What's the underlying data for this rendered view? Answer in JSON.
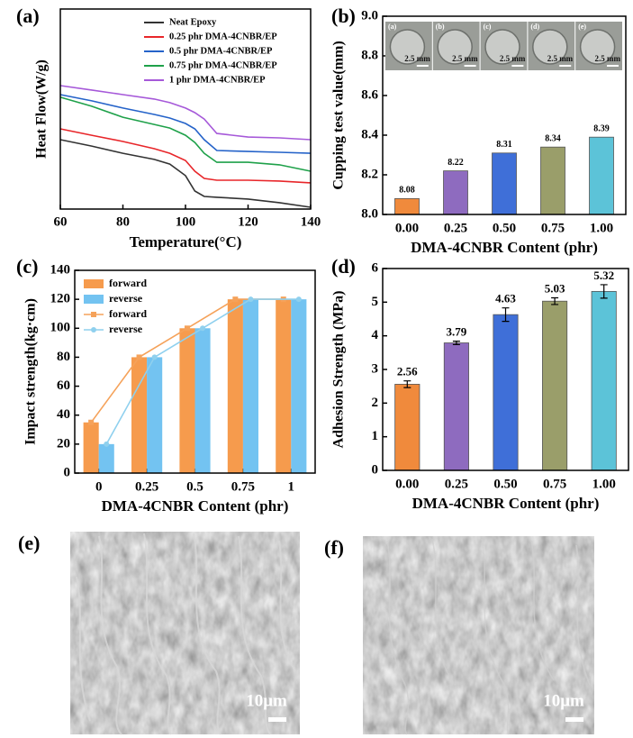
{
  "chart_data": [
    {
      "type": "line",
      "label": "(a)",
      "x_label": "Temperature(°C)",
      "y_label": "Heat Flow(W/g)",
      "x": [
        60,
        70,
        80,
        90,
        95,
        100,
        103,
        106,
        110,
        120,
        130,
        140
      ],
      "xlim": [
        60,
        140
      ],
      "xticks": [
        60,
        80,
        100,
        120,
        140
      ],
      "ylim": [
        0,
        10
      ],
      "legend": "upper right",
      "series": [
        {
          "name": "Neat Epoxy",
          "color": "#333333",
          "values": [
            3.47,
            3.15,
            2.79,
            2.48,
            2.25,
            1.67,
            0.9,
            0.63,
            0.59,
            0.5,
            0.32,
            0.09
          ]
        },
        {
          "name": "0.25 phr DMA-4CNBR/EP",
          "color": "#e8262a",
          "values": [
            4.01,
            3.69,
            3.38,
            3.02,
            2.79,
            2.43,
            1.89,
            1.53,
            1.44,
            1.44,
            1.4,
            1.31
          ]
        },
        {
          "name": "0.5 phr DMA-4CNBR/EP",
          "color": "#2563c9",
          "values": [
            5.72,
            5.41,
            5.05,
            4.73,
            4.55,
            4.28,
            4.01,
            3.47,
            2.93,
            2.88,
            2.84,
            2.79
          ]
        },
        {
          "name": "0.75 phr DMA-4CNBR/EP",
          "color": "#1fa14a",
          "values": [
            5.59,
            5.14,
            4.59,
            4.23,
            4.05,
            3.69,
            3.33,
            2.79,
            2.34,
            2.34,
            2.21,
            1.89
          ]
        },
        {
          "name": "1 phr DMA-4CNBR/EP",
          "color": "#a659d9",
          "values": [
            6.17,
            5.95,
            5.72,
            5.5,
            5.32,
            5.05,
            4.82,
            4.5,
            3.78,
            3.6,
            3.56,
            3.47
          ]
        }
      ]
    },
    {
      "type": "bar",
      "label": "(b)",
      "x_label": "DMA-4CNBR Content (phr)",
      "y_label": "Cupping test value(mm)",
      "categories": [
        "0.00",
        "0.25",
        "0.50",
        "0.75",
        "1.00"
      ],
      "values": [
        8.08,
        8.22,
        8.31,
        8.34,
        8.39
      ],
      "colors": [
        "#f08a3c",
        "#8e6bbf",
        "#3f6fd8",
        "#9a9e6a",
        "#5cc3d8"
      ],
      "ylim": [
        8.0,
        9.0
      ],
      "yticks": [
        {
          "value": 8,
          "label": "8.0"
        },
        8.2,
        8.4,
        8.6,
        8.8,
        {
          "value": 9,
          "label": "9.0"
        }
      ],
      "insets": [
        {
          "label": "(a)",
          "scale": "2.5 mm"
        },
        {
          "label": "(b)",
          "scale": "2.5 mm"
        },
        {
          "label": "(c)",
          "scale": "2.5 mm"
        },
        {
          "label": "(d)",
          "scale": "2.5 mm"
        },
        {
          "label": "(e)",
          "scale": "2.5 mm"
        }
      ]
    },
    {
      "type": "bar",
      "label": "(c)",
      "x_label": "DMA-4CNBR Content (phr)",
      "y_label": "Impact strength(kg·cm)",
      "categories": [
        "0",
        "0.25",
        "0.5",
        "0.75",
        "1"
      ],
      "ylim": [
        0,
        140
      ],
      "yticks": [
        0,
        20,
        40,
        60,
        80,
        100,
        120,
        140
      ],
      "legend": "upper left",
      "series": [
        {
          "name": "forward",
          "type": "bar",
          "color": "#f5892e",
          "values": [
            35,
            80,
            100,
            120,
            120
          ]
        },
        {
          "name": "reverse",
          "type": "bar",
          "color": "#5ab8ef",
          "values": [
            20,
            80,
            100,
            120,
            120
          ]
        },
        {
          "name": "forward",
          "type": "line",
          "color": "#f5a25a",
          "values": [
            35,
            80,
            100,
            120,
            120
          ]
        },
        {
          "name": "reverse",
          "type": "line",
          "color": "#8fd0ee",
          "values": [
            20,
            80,
            100,
            120,
            120
          ]
        }
      ]
    },
    {
      "type": "bar",
      "label": "(d)",
      "x_label": "DMA-4CNBR Content (phr)",
      "y_label": "Adhesion Strength (MPa)",
      "categories": [
        "0.00",
        "0.25",
        "0.50",
        "0.75",
        "1.00"
      ],
      "values": [
        2.56,
        3.79,
        4.63,
        5.03,
        5.32
      ],
      "errors": [
        0.1,
        0.05,
        0.2,
        0.1,
        0.2
      ],
      "colors": [
        "#f08a3c",
        "#8e6bbf",
        "#3f6fd8",
        "#9a9e6a",
        "#5cc3d8"
      ],
      "ylim": [
        0,
        6
      ],
      "yticks": [
        0,
        1,
        2,
        3,
        4,
        5,
        6
      ]
    }
  ],
  "figure": {
    "sem": [
      {
        "label": "(e)",
        "scale": "10μm"
      },
      {
        "label": "(f)",
        "scale": "10μm"
      }
    ]
  }
}
